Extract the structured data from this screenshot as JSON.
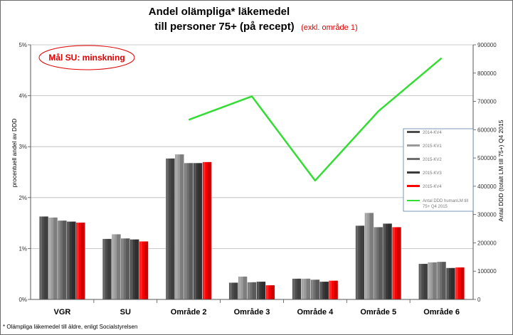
{
  "chart_data": {
    "type": "bar",
    "title_line1": "Andel olämpliga* läkemedel",
    "title_line2": "till personer 75+ (på recept)",
    "title_note": "(exkl. område 1)",
    "ylabel": "procentuell andel av DDD",
    "y2label_line1": "Antal DDD (totalt LM till 75+) Q4 2015",
    "ylim": [
      0,
      5
    ],
    "y_ticks": [
      "0%",
      "1%",
      "2%",
      "3%",
      "4%",
      "5%"
    ],
    "y2lim": [
      0,
      900000
    ],
    "y2_ticks": [
      "0",
      "100000",
      "200000",
      "300000",
      "400000",
      "500000",
      "600000",
      "700000",
      "800000",
      "900000"
    ],
    "categories": [
      "VGR",
      "SU",
      "Område 2",
      "Område 3",
      "Område 4",
      "Område 5",
      "Område 6"
    ],
    "series": [
      {
        "name": "2014-KV4",
        "color": "#4d4d4d",
        "values": [
          1.63,
          1.19,
          2.77,
          0.33,
          0.41,
          1.45,
          0.7
        ]
      },
      {
        "name": "2015-KV1",
        "color": "#9a9a9a",
        "values": [
          1.61,
          1.28,
          2.85,
          0.45,
          0.41,
          1.7,
          0.73
        ]
      },
      {
        "name": "2015-KV2",
        "color": "#6e6e6e",
        "values": [
          1.55,
          1.2,
          2.68,
          0.34,
          0.39,
          1.42,
          0.74
        ]
      },
      {
        "name": "2015-KV3",
        "color": "#3a3a3a",
        "values": [
          1.53,
          1.18,
          2.68,
          0.35,
          0.35,
          1.49,
          0.62
        ]
      },
      {
        "name": "2015-KV4",
        "color": "#ff0000",
        "values": [
          1.51,
          1.14,
          2.7,
          0.28,
          0.37,
          1.42,
          0.63
        ]
      }
    ],
    "line_series": {
      "name": "Antal DDD humanLM till 75+ Q4 2015",
      "color": "#33dd33",
      "axis": "right",
      "categories": [
        "Område 2",
        "Område 3",
        "Område 4",
        "Område 5",
        "Område 6"
      ],
      "values": [
        635000,
        718000,
        420000,
        665000,
        853000
      ]
    },
    "annotation": "Mål SU: minskning",
    "footnote": "* Olämpliga läkemedel till äldre, enligt Socialstyrelsen",
    "legend_position": "right"
  }
}
